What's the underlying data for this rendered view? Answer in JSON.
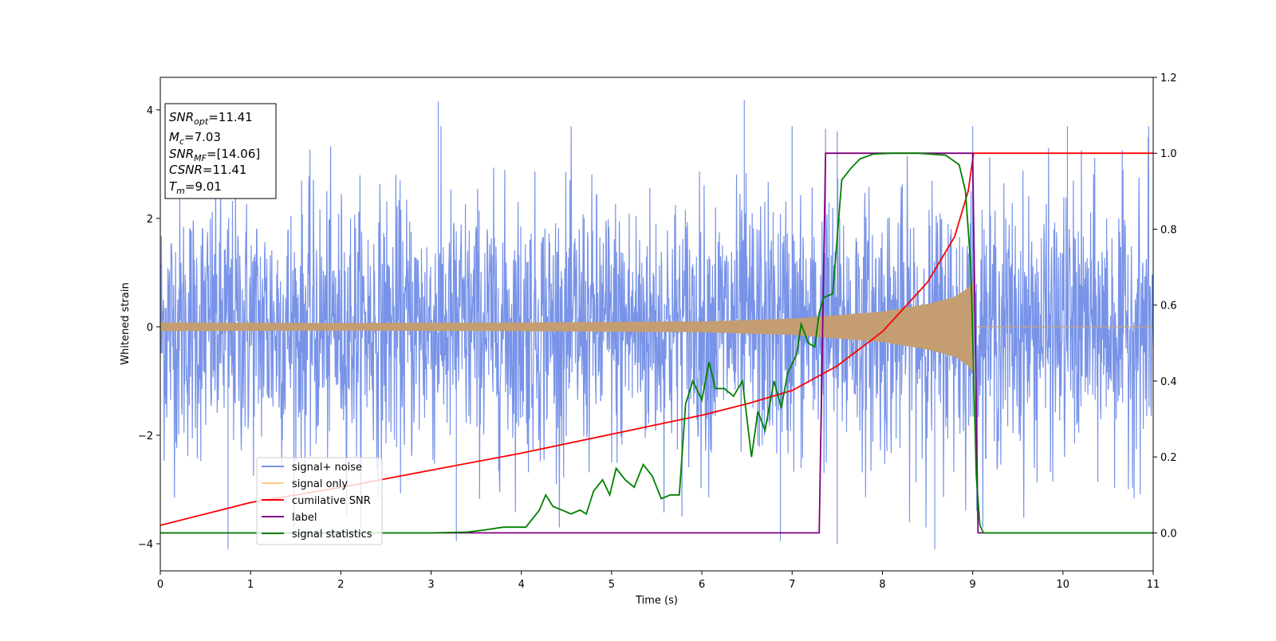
{
  "chart_data": {
    "type": "line",
    "xlabel": "Time (s)",
    "ylabel": "Whitened strain",
    "xlim": [
      0,
      11
    ],
    "ylim_left": [
      -4.5,
      4.6
    ],
    "ylim_right": [
      -0.1,
      1.2
    ],
    "x_ticks": [
      "0",
      "1",
      "2",
      "3",
      "4",
      "5",
      "6",
      "7",
      "8",
      "9",
      "10",
      "11"
    ],
    "y_ticks_left": [
      "−4",
      "−2",
      "0",
      "2",
      "4"
    ],
    "y_ticks_right": [
      "0.0",
      "0.2",
      "0.4",
      "0.6",
      "0.8",
      "1.0",
      "1.2"
    ],
    "legend_position": "lower-left",
    "info_box": [
      {
        "base": "SNR",
        "sub": "opt",
        "value": "=11.41"
      },
      {
        "base": "M",
        "sub": "c",
        "value": "=7.03"
      },
      {
        "base": "SNR",
        "sub": "MF",
        "value": "=[14.06]"
      },
      {
        "base": "CSNR",
        "sub": "",
        "value": "=11.41"
      },
      {
        "base": "T",
        "sub": "m",
        "value": "=9.01"
      }
    ],
    "series": [
      {
        "name": "signal+ noise",
        "color": "#7893e8",
        "axis": "left",
        "kind": "noise",
        "std": 1.2,
        "sparse_peaks": [
          [
            0.75,
            -4.1
          ],
          [
            3.08,
            4.15
          ],
          [
            3.28,
            -3.95
          ],
          [
            6.47,
            4.18
          ],
          [
            6.87,
            -3.95
          ],
          [
            7.0,
            3.7
          ],
          [
            7.37,
            3.65
          ],
          [
            7.5,
            3.6
          ],
          [
            7.5,
            -4.0
          ],
          [
            8.58,
            -4.1
          ],
          [
            9.0,
            3.7
          ],
          [
            10.05,
            3.7
          ],
          [
            10.95,
            3.7
          ]
        ]
      },
      {
        "name": "signal only",
        "color": "#f5a623",
        "axis": "left",
        "kind": "chirp",
        "merger_time": 9.01,
        "end_time": 9.03,
        "amplitude_points": [
          [
            0,
            0.08
          ],
          [
            2,
            0.07
          ],
          [
            4,
            0.08
          ],
          [
            6,
            0.1
          ],
          [
            7,
            0.15
          ],
          [
            8,
            0.28
          ],
          [
            8.5,
            0.42
          ],
          [
            8.8,
            0.55
          ],
          [
            8.95,
            0.72
          ],
          [
            9.01,
            0.85
          ],
          [
            9.03,
            0
          ]
        ]
      },
      {
        "name": "cumilative SNR",
        "color": "#ff0000",
        "axis": "right",
        "kind": "line",
        "points": [
          [
            0,
            0.02
          ],
          [
            0.5,
            0.05
          ],
          [
            1,
            0.08
          ],
          [
            2,
            0.12
          ],
          [
            3,
            0.165
          ],
          [
            4,
            0.21
          ],
          [
            5,
            0.26
          ],
          [
            6,
            0.31
          ],
          [
            6.5,
            0.34
          ],
          [
            7,
            0.375
          ],
          [
            7.5,
            0.44
          ],
          [
            8,
            0.53
          ],
          [
            8.5,
            0.66
          ],
          [
            8.8,
            0.78
          ],
          [
            8.95,
            0.9
          ],
          [
            9.01,
            1.0
          ],
          [
            11,
            1.0
          ]
        ]
      },
      {
        "name": "label",
        "color": "#800080",
        "axis": "right",
        "kind": "line",
        "points": [
          [
            0,
            0
          ],
          [
            7.3,
            0
          ],
          [
            7.37,
            1.0
          ],
          [
            9.0,
            1.0
          ],
          [
            9.06,
            0
          ],
          [
            11,
            0
          ]
        ]
      },
      {
        "name": "signal statistics",
        "color": "#008000",
        "axis": "right",
        "kind": "line",
        "points": [
          [
            0,
            0.0
          ],
          [
            1,
            0.0
          ],
          [
            2,
            0.0
          ],
          [
            3,
            0.0
          ],
          [
            3.4,
            0.002
          ],
          [
            3.6,
            0.008
          ],
          [
            3.8,
            0.015
          ],
          [
            4.05,
            0.015
          ],
          [
            4.2,
            0.06
          ],
          [
            4.27,
            0.1
          ],
          [
            4.35,
            0.07
          ],
          [
            4.45,
            0.06
          ],
          [
            4.55,
            0.05
          ],
          [
            4.65,
            0.06
          ],
          [
            4.72,
            0.05
          ],
          [
            4.8,
            0.11
          ],
          [
            4.9,
            0.14
          ],
          [
            4.98,
            0.1
          ],
          [
            5.05,
            0.17
          ],
          [
            5.15,
            0.14
          ],
          [
            5.25,
            0.12
          ],
          [
            5.35,
            0.18
          ],
          [
            5.45,
            0.15
          ],
          [
            5.55,
            0.09
          ],
          [
            5.65,
            0.1
          ],
          [
            5.75,
            0.1
          ],
          [
            5.82,
            0.34
          ],
          [
            5.9,
            0.4
          ],
          [
            6.0,
            0.35
          ],
          [
            6.08,
            0.45
          ],
          [
            6.15,
            0.38
          ],
          [
            6.25,
            0.38
          ],
          [
            6.35,
            0.36
          ],
          [
            6.45,
            0.4
          ],
          [
            6.55,
            0.2
          ],
          [
            6.62,
            0.32
          ],
          [
            6.7,
            0.27
          ],
          [
            6.8,
            0.4
          ],
          [
            6.88,
            0.33
          ],
          [
            6.95,
            0.42
          ],
          [
            7.05,
            0.47
          ],
          [
            7.1,
            0.55
          ],
          [
            7.18,
            0.5
          ],
          [
            7.25,
            0.49
          ],
          [
            7.3,
            0.58
          ],
          [
            7.35,
            0.62
          ],
          [
            7.45,
            0.63
          ],
          [
            7.55,
            0.93
          ],
          [
            7.65,
            0.96
          ],
          [
            7.75,
            0.985
          ],
          [
            7.9,
            0.998
          ],
          [
            8.1,
            1.0
          ],
          [
            8.4,
            1.0
          ],
          [
            8.7,
            0.995
          ],
          [
            8.85,
            0.97
          ],
          [
            8.92,
            0.9
          ],
          [
            8.98,
            0.7
          ],
          [
            9.04,
            0.15
          ],
          [
            9.08,
            0.02
          ],
          [
            9.12,
            0.0
          ],
          [
            11,
            0.0
          ]
        ]
      }
    ]
  }
}
